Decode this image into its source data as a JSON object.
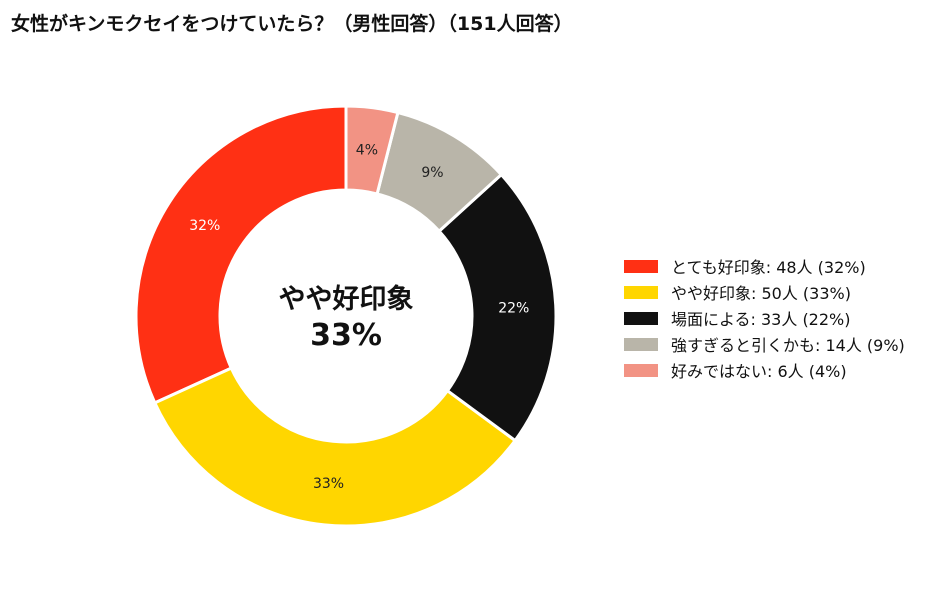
{
  "chart_data": {
    "type": "pie",
    "variant": "donut",
    "title": "女性がキンモクセイをつけていたら？（男性回答）（151人回答）",
    "center_label": "やや好印象",
    "center_value": "33%",
    "legend_placement": "right",
    "slices": [
      {
        "label": "とても好印象",
        "count": 48,
        "percent": 32,
        "pct_label": "32%",
        "legend_label": "とても好印象:  48人 (32%)",
        "color": "#ff3014",
        "label_color": "#ffffff"
      },
      {
        "label": "やや好印象",
        "count": 50,
        "percent": 33,
        "pct_label": "33%",
        "legend_label": "やや好印象:  50人 (33%)",
        "color": "#ffd600",
        "label_color": "#222222"
      },
      {
        "label": "場面による",
        "count": 33,
        "percent": 22,
        "pct_label": "22%",
        "legend_label": "場面による:  33人 (22%)",
        "color": "#111111",
        "label_color": "#ffffff"
      },
      {
        "label": "強すぎると引くかも",
        "count": 14,
        "percent": 9,
        "pct_label": "9%",
        "legend_label": "強すぎると引くかも:  14人 (9%)",
        "color": "#b9b5a9",
        "label_color": "#222222"
      },
      {
        "label": "好みではない",
        "count": 6,
        "percent": 4,
        "pct_label": "4%",
        "legend_label": "好みではない:  6人 (4%)",
        "color": "#f29384",
        "label_color": "#222222"
      }
    ]
  }
}
